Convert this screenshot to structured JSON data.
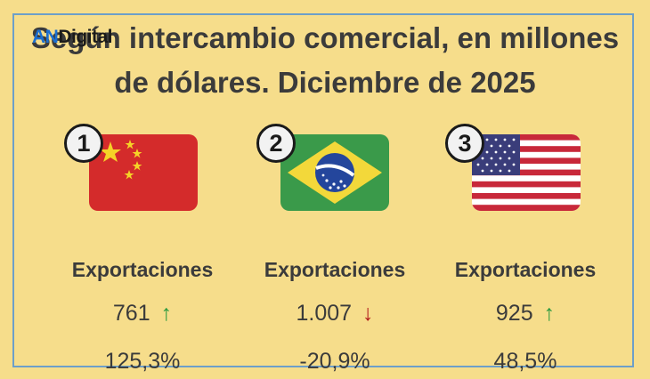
{
  "header": {
    "title_line1": "Según intercambio comercial, en millones",
    "title_line2": "de dólares. Diciembre de 2025",
    "logo_an": "AN",
    "logo_digital": "Digital"
  },
  "countries": [
    {
      "rank": "1",
      "flag": "china-flag",
      "label": "Exportaciones",
      "value": "761",
      "arrow": "↑",
      "trend": "up",
      "change": "125,3%"
    },
    {
      "rank": "2",
      "flag": "brazil-flag",
      "label": "Exportaciones",
      "value": "1.007",
      "arrow": "↓",
      "trend": "down",
      "change": "-20,9%"
    },
    {
      "rank": "3",
      "flag": "usa-flag",
      "label": "Exportaciones",
      "value": "925",
      "arrow": "↑",
      "trend": "up",
      "change": "48,5%"
    }
  ],
  "colors": {
    "background": "#f6dd8b",
    "up": "#2c9a3f",
    "down": "#b21c1c",
    "frame": "#6d9fc9"
  }
}
